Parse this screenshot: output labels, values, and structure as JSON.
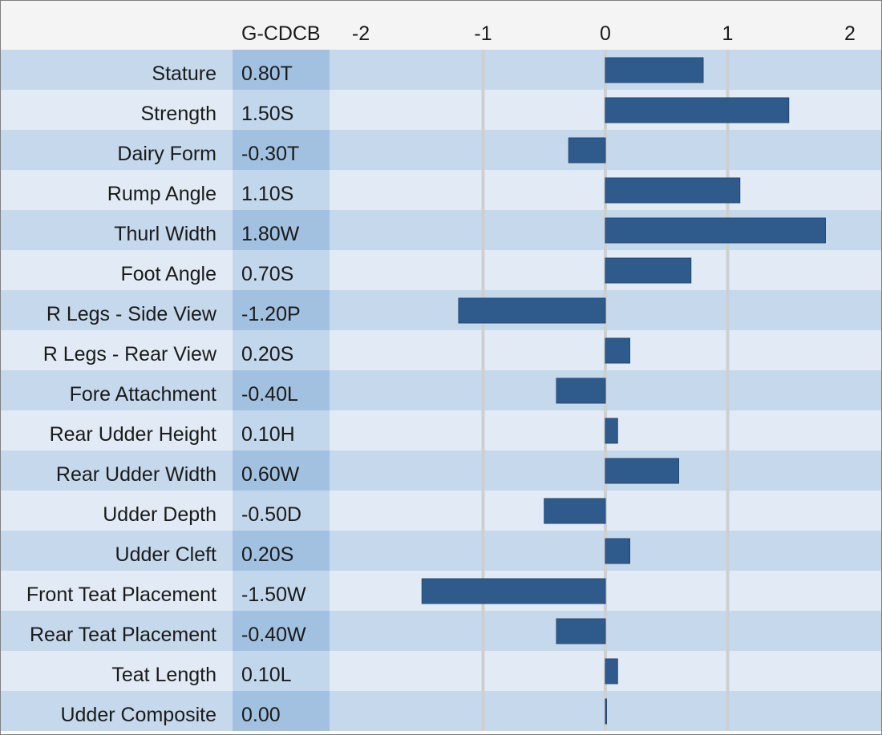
{
  "colors": {
    "header_bg": "#f4f4f4",
    "row_dark": "#c5d8ec",
    "row_light": "#e2ebf5",
    "score_col_dark": "#a2c1e0",
    "score_col_light": "#c3d7ec",
    "bar": "#2f5b8c",
    "grid": "#cfcfcf",
    "text": "#1a1a1a"
  },
  "chart_data": {
    "type": "bar",
    "orientation": "horizontal",
    "score_header": "G-CDCB",
    "xlim": [
      -2,
      2
    ],
    "x_ticks": [
      "-2",
      "-1",
      "0",
      "1",
      "2"
    ],
    "grid": true,
    "categories": [
      "Stature",
      "Strength",
      "Dairy Form",
      "Rump Angle",
      "Thurl Width",
      "Foot Angle",
      "R Legs - Side View",
      "R Legs - Rear View",
      "Fore Attachment",
      "Rear Udder Height",
      "Rear Udder Width",
      "Udder Depth",
      "Udder Cleft",
      "Front Teat Placement",
      "Rear Teat Placement",
      "Teat Length",
      "Udder Composite"
    ],
    "scores": [
      "0.80T",
      "1.50S",
      "-0.30T",
      "1.10S",
      "1.80W",
      "0.70S",
      "-1.20P",
      "0.20S",
      "-0.40L",
      "0.10H",
      "0.60W",
      "-0.50D",
      "0.20S",
      "-1.50W",
      "-0.40W",
      "0.10L",
      "0.00"
    ],
    "values": [
      0.8,
      1.5,
      -0.3,
      1.1,
      1.8,
      0.7,
      -1.2,
      0.2,
      -0.4,
      0.1,
      0.6,
      -0.5,
      0.2,
      -1.5,
      -0.4,
      0.1,
      0.0
    ]
  }
}
